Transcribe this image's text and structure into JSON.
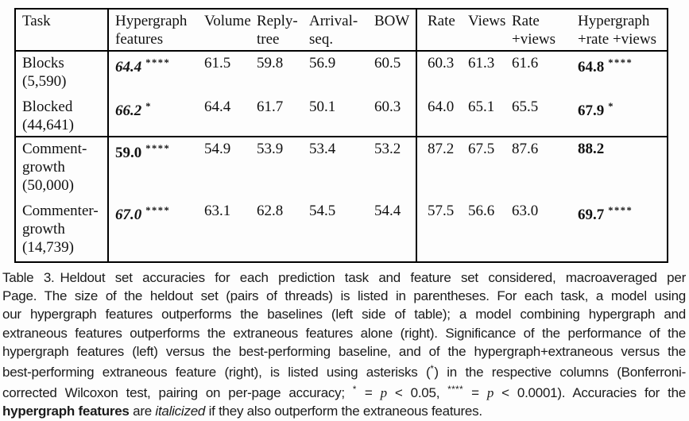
{
  "table": {
    "headers": {
      "task": "Task",
      "hypergraph": "Hypergraph\nfeatures",
      "volume": "Volume",
      "reply_tree": "Reply-\ntree",
      "arrival_seq": "Arrival-\nseq.",
      "bow": "BOW",
      "rate": "Rate",
      "views": "Views",
      "rate_views": "Rate\n+views",
      "hyper_rate_views": "Hypergraph\n+rate +views"
    },
    "rows": [
      {
        "task": "Blocks\n(5,590)",
        "hypergraph": [
          {
            "t": "64.4",
            "s": "bi"
          },
          {
            "t": "****",
            "s": "sup"
          }
        ],
        "volume": "61.5",
        "reply_tree": "59.8",
        "arrival_seq": "56.9",
        "bow": "60.5",
        "rate": "60.3",
        "views": "61.3",
        "rate_views": "61.6",
        "hyper_rate_views": [
          {
            "t": "64.8",
            "s": "b"
          },
          {
            "t": "****",
            "s": "sup"
          }
        ]
      },
      {
        "task": "Blocked\n(44,641)",
        "hypergraph": [
          {
            "t": "66.2",
            "s": "bi"
          },
          {
            "t": "*",
            "s": "sup"
          }
        ],
        "volume": "64.4",
        "reply_tree": "61.7",
        "arrival_seq": "50.1",
        "bow": "60.3",
        "rate": "64.0",
        "views": "65.1",
        "rate_views": "65.5",
        "hyper_rate_views": [
          {
            "t": "67.9",
            "s": "b"
          },
          {
            "t": "*",
            "s": "sup"
          }
        ]
      },
      {
        "task": "Comment-\ngrowth\n(50,000)",
        "hypergraph": [
          {
            "t": "59.0",
            "s": "b"
          },
          {
            "t": "****",
            "s": "sup"
          }
        ],
        "volume": "54.9",
        "reply_tree": "53.9",
        "arrival_seq": "53.4",
        "bow": "53.2",
        "rate": "87.2",
        "views": "67.5",
        "rate_views": "87.6",
        "hyper_rate_views": [
          {
            "t": "88.2",
            "s": "b"
          }
        ]
      },
      {
        "task": "Commenter-\ngrowth\n(14,739)",
        "hypergraph": [
          {
            "t": "67.0",
            "s": "bi"
          },
          {
            "t": "****",
            "s": "sup"
          }
        ],
        "volume": "63.1",
        "reply_tree": "62.8",
        "arrival_seq": "54.5",
        "bow": "54.4",
        "rate": "57.5",
        "views": "56.6",
        "rate_views": "63.0",
        "hyper_rate_views": [
          {
            "t": "69.7",
            "s": "b"
          },
          {
            "t": "****",
            "s": "sup"
          }
        ]
      }
    ]
  },
  "caption": {
    "lines": [
      [
        {
          "t": "Table 3.",
          "s": "gap"
        },
        {
          "t": "Heldout set accuracies for each prediction task and feature set considered, macroaveraged per"
        }
      ],
      [
        {
          "t": "Page. The size of the heldout set (pairs of threads) is listed in parentheses. For each task, a model using"
        }
      ],
      [
        {
          "t": "our hypergraph features outperforms the baselines (left side of table); a model combining hypergraph and"
        }
      ],
      [
        {
          "t": "extraneous features outperforms the extraneous features alone (right). Significance of the performance of the"
        }
      ],
      [
        {
          "t": "hypergraph features (left) versus the best-performing baseline, and of the hypergraph+extraneous versus the"
        }
      ],
      [
        {
          "t": "best-performing extraneous feature (right), is listed using asterisks ("
        },
        {
          "t": "*",
          "s": "sup"
        },
        {
          "t": ") in the respective columns (Bonferroni-"
        }
      ],
      [
        {
          "t": "corrected Wilcoxon test, pairing on per-page accuracy; "
        },
        {
          "t": "*",
          "s": "sup"
        },
        {
          "t": " = "
        },
        {
          "t": "p",
          "s": "ip"
        },
        {
          "t": " < 0.05, "
        },
        {
          "t": "****",
          "s": "sup"
        },
        {
          "t": " = "
        },
        {
          "t": "p",
          "s": "ip"
        },
        {
          "t": " < 0.0001). Accuracies for the"
        }
      ],
      [
        {
          "t": "hypergraph features",
          "s": "b"
        },
        {
          "t": " are "
        },
        {
          "t": "italicized",
          "s": "i"
        },
        {
          "t": " if they also outperform the extraneous features."
        }
      ]
    ]
  }
}
